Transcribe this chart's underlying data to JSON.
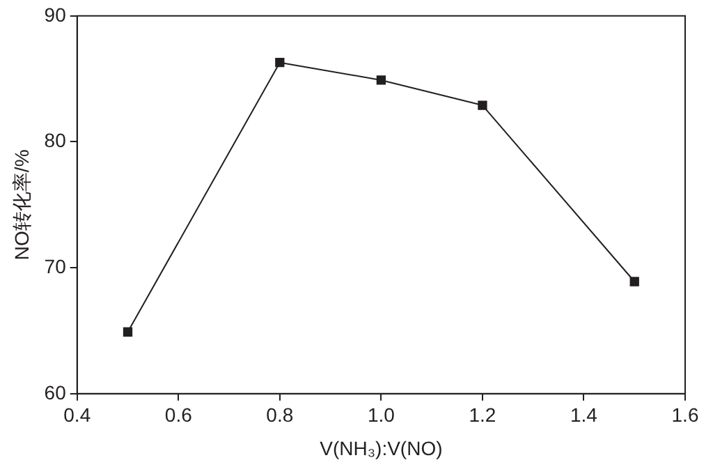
{
  "chart_data": {
    "type": "line",
    "xlabel": "V(NH₃):V(NO)",
    "ylabel": "NO转化率/%",
    "x": [
      0.5,
      0.8,
      1.0,
      1.2,
      1.5
    ],
    "series": [
      {
        "color": "#231f20",
        "values": [
          64.9,
          86.3,
          84.9,
          82.9,
          68.9
        ]
      }
    ],
    "xlim": [
      0.4,
      1.6
    ],
    "xticks": [
      0.4,
      0.6,
      0.8,
      {
        "value": 1,
        "label": "1.0"
      },
      1.2,
      1.4,
      1.6
    ],
    "ylim": [
      60,
      90
    ],
    "yticks": [
      60,
      70,
      80,
      90
    ],
    "grid": false,
    "legend": false,
    "marker": "square",
    "line_style": "solid"
  }
}
